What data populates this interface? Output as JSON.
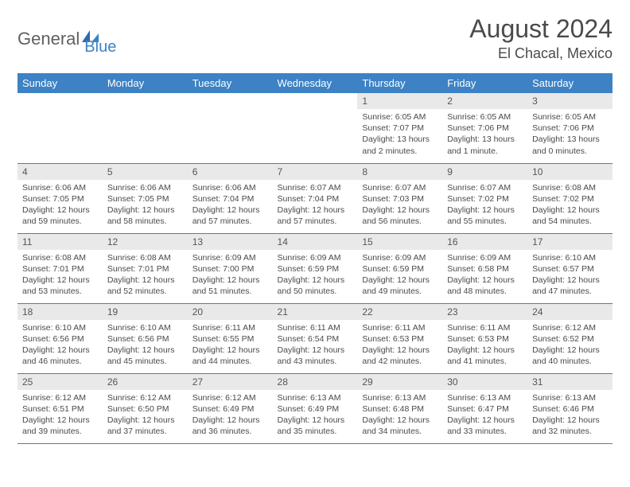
{
  "logo": {
    "word1": "General",
    "word2": "Blue"
  },
  "title": "August 2024",
  "location": "El Chacal, Mexico",
  "day_headers": [
    "Sunday",
    "Monday",
    "Tuesday",
    "Wednesday",
    "Thursday",
    "Friday",
    "Saturday"
  ],
  "colors": {
    "header_bg": "#3d82c4",
    "header_text": "#ffffff",
    "daynum_bg": "#e9e9e9",
    "rule": "#3d82c4",
    "text": "#4a4a4a",
    "logo_gray": "#5f6062",
    "logo_blue": "#3d82c4",
    "background": "#ffffff"
  },
  "typography": {
    "title_fontsize": 32,
    "location_fontsize": 18,
    "header_fontsize": 13,
    "daynum_fontsize": 12,
    "info_fontsize": 10.5,
    "font_family": "Arial"
  },
  "weeks": [
    [
      {
        "n": "",
        "sr": "",
        "ss": "",
        "dl": ""
      },
      {
        "n": "",
        "sr": "",
        "ss": "",
        "dl": ""
      },
      {
        "n": "",
        "sr": "",
        "ss": "",
        "dl": ""
      },
      {
        "n": "",
        "sr": "",
        "ss": "",
        "dl": ""
      },
      {
        "n": "1",
        "sr": "Sunrise: 6:05 AM",
        "ss": "Sunset: 7:07 PM",
        "dl": "Daylight: 13 hours and 2 minutes."
      },
      {
        "n": "2",
        "sr": "Sunrise: 6:05 AM",
        "ss": "Sunset: 7:06 PM",
        "dl": "Daylight: 13 hours and 1 minute."
      },
      {
        "n": "3",
        "sr": "Sunrise: 6:05 AM",
        "ss": "Sunset: 7:06 PM",
        "dl": "Daylight: 13 hours and 0 minutes."
      }
    ],
    [
      {
        "n": "4",
        "sr": "Sunrise: 6:06 AM",
        "ss": "Sunset: 7:05 PM",
        "dl": "Daylight: 12 hours and 59 minutes."
      },
      {
        "n": "5",
        "sr": "Sunrise: 6:06 AM",
        "ss": "Sunset: 7:05 PM",
        "dl": "Daylight: 12 hours and 58 minutes."
      },
      {
        "n": "6",
        "sr": "Sunrise: 6:06 AM",
        "ss": "Sunset: 7:04 PM",
        "dl": "Daylight: 12 hours and 57 minutes."
      },
      {
        "n": "7",
        "sr": "Sunrise: 6:07 AM",
        "ss": "Sunset: 7:04 PM",
        "dl": "Daylight: 12 hours and 57 minutes."
      },
      {
        "n": "8",
        "sr": "Sunrise: 6:07 AM",
        "ss": "Sunset: 7:03 PM",
        "dl": "Daylight: 12 hours and 56 minutes."
      },
      {
        "n": "9",
        "sr": "Sunrise: 6:07 AM",
        "ss": "Sunset: 7:02 PM",
        "dl": "Daylight: 12 hours and 55 minutes."
      },
      {
        "n": "10",
        "sr": "Sunrise: 6:08 AM",
        "ss": "Sunset: 7:02 PM",
        "dl": "Daylight: 12 hours and 54 minutes."
      }
    ],
    [
      {
        "n": "11",
        "sr": "Sunrise: 6:08 AM",
        "ss": "Sunset: 7:01 PM",
        "dl": "Daylight: 12 hours and 53 minutes."
      },
      {
        "n": "12",
        "sr": "Sunrise: 6:08 AM",
        "ss": "Sunset: 7:01 PM",
        "dl": "Daylight: 12 hours and 52 minutes."
      },
      {
        "n": "13",
        "sr": "Sunrise: 6:09 AM",
        "ss": "Sunset: 7:00 PM",
        "dl": "Daylight: 12 hours and 51 minutes."
      },
      {
        "n": "14",
        "sr": "Sunrise: 6:09 AM",
        "ss": "Sunset: 6:59 PM",
        "dl": "Daylight: 12 hours and 50 minutes."
      },
      {
        "n": "15",
        "sr": "Sunrise: 6:09 AM",
        "ss": "Sunset: 6:59 PM",
        "dl": "Daylight: 12 hours and 49 minutes."
      },
      {
        "n": "16",
        "sr": "Sunrise: 6:09 AM",
        "ss": "Sunset: 6:58 PM",
        "dl": "Daylight: 12 hours and 48 minutes."
      },
      {
        "n": "17",
        "sr": "Sunrise: 6:10 AM",
        "ss": "Sunset: 6:57 PM",
        "dl": "Daylight: 12 hours and 47 minutes."
      }
    ],
    [
      {
        "n": "18",
        "sr": "Sunrise: 6:10 AM",
        "ss": "Sunset: 6:56 PM",
        "dl": "Daylight: 12 hours and 46 minutes."
      },
      {
        "n": "19",
        "sr": "Sunrise: 6:10 AM",
        "ss": "Sunset: 6:56 PM",
        "dl": "Daylight: 12 hours and 45 minutes."
      },
      {
        "n": "20",
        "sr": "Sunrise: 6:11 AM",
        "ss": "Sunset: 6:55 PM",
        "dl": "Daylight: 12 hours and 44 minutes."
      },
      {
        "n": "21",
        "sr": "Sunrise: 6:11 AM",
        "ss": "Sunset: 6:54 PM",
        "dl": "Daylight: 12 hours and 43 minutes."
      },
      {
        "n": "22",
        "sr": "Sunrise: 6:11 AM",
        "ss": "Sunset: 6:53 PM",
        "dl": "Daylight: 12 hours and 42 minutes."
      },
      {
        "n": "23",
        "sr": "Sunrise: 6:11 AM",
        "ss": "Sunset: 6:53 PM",
        "dl": "Daylight: 12 hours and 41 minutes."
      },
      {
        "n": "24",
        "sr": "Sunrise: 6:12 AM",
        "ss": "Sunset: 6:52 PM",
        "dl": "Daylight: 12 hours and 40 minutes."
      }
    ],
    [
      {
        "n": "25",
        "sr": "Sunrise: 6:12 AM",
        "ss": "Sunset: 6:51 PM",
        "dl": "Daylight: 12 hours and 39 minutes."
      },
      {
        "n": "26",
        "sr": "Sunrise: 6:12 AM",
        "ss": "Sunset: 6:50 PM",
        "dl": "Daylight: 12 hours and 37 minutes."
      },
      {
        "n": "27",
        "sr": "Sunrise: 6:12 AM",
        "ss": "Sunset: 6:49 PM",
        "dl": "Daylight: 12 hours and 36 minutes."
      },
      {
        "n": "28",
        "sr": "Sunrise: 6:13 AM",
        "ss": "Sunset: 6:49 PM",
        "dl": "Daylight: 12 hours and 35 minutes."
      },
      {
        "n": "29",
        "sr": "Sunrise: 6:13 AM",
        "ss": "Sunset: 6:48 PM",
        "dl": "Daylight: 12 hours and 34 minutes."
      },
      {
        "n": "30",
        "sr": "Sunrise: 6:13 AM",
        "ss": "Sunset: 6:47 PM",
        "dl": "Daylight: 12 hours and 33 minutes."
      },
      {
        "n": "31",
        "sr": "Sunrise: 6:13 AM",
        "ss": "Sunset: 6:46 PM",
        "dl": "Daylight: 12 hours and 32 minutes."
      }
    ]
  ]
}
